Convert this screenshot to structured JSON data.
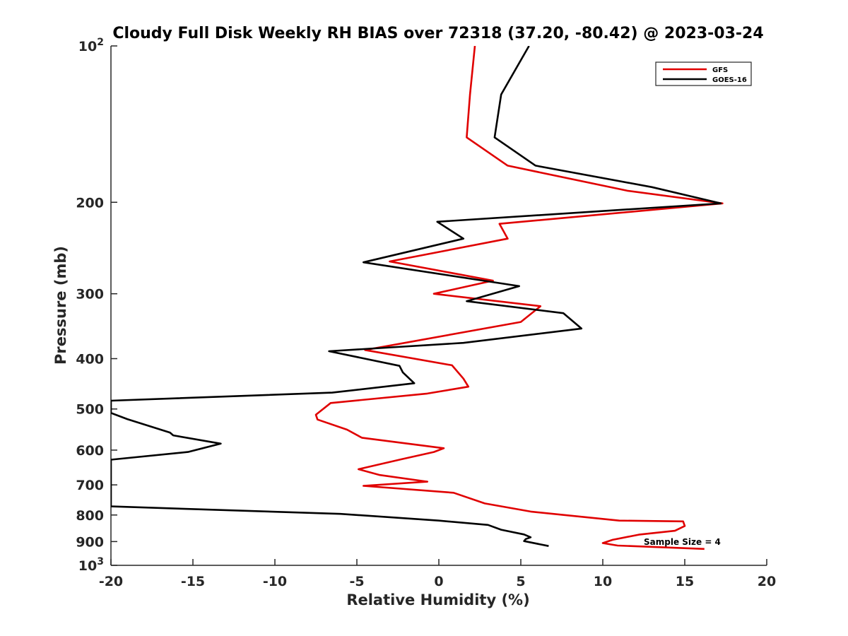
{
  "chart_data": {
    "type": "line",
    "title": "Cloudy Full Disk Weekly RH BIAS over 72318 (37.20, -80.42) @ 2023-03-24",
    "xlabel": "Relative Humidity (%)",
    "ylabel": "Pressure (mb)",
    "xlim": [
      -20,
      20
    ],
    "ylim": [
      100,
      1000
    ],
    "yscale": "log",
    "yreversed": true,
    "xticks": [
      -20,
      -15,
      -10,
      -5,
      0,
      5,
      10,
      15,
      20
    ],
    "xtick_labels": [
      "-20",
      "-15",
      "-10",
      "-5",
      "0",
      "5",
      "10",
      "15",
      "20"
    ],
    "yticks": [
      100,
      200,
      300,
      400,
      500,
      600,
      700,
      800,
      900,
      1000
    ],
    "ytick_labels": [
      {
        "base": "10",
        "exp": "2"
      },
      {
        "base": "200",
        "exp": ""
      },
      {
        "base": "300",
        "exp": ""
      },
      {
        "base": "400",
        "exp": ""
      },
      {
        "base": "500",
        "exp": ""
      },
      {
        "base": "600",
        "exp": ""
      },
      {
        "base": "700",
        "exp": ""
      },
      {
        "base": "800",
        "exp": ""
      },
      {
        "base": "900",
        "exp": ""
      },
      {
        "base": "10",
        "exp": "3"
      }
    ],
    "legend_position": "top-right",
    "annotation": "Sample Size = 4",
    "series": [
      {
        "name": "GFS",
        "color": "#e00000",
        "x": [
          2.2,
          1.9,
          1.7,
          4.2,
          11.5,
          17.3,
          3.7,
          4.2,
          -3.0,
          3.3,
          -0.3,
          6.2,
          5.0,
          -4.5,
          0.8,
          1.5,
          1.8,
          -0.7,
          -6.6,
          -7.5,
          -7.4,
          -5.6,
          -4.7,
          0.3,
          -0.3,
          -2.3,
          -4.9,
          -3.6,
          -0.7,
          -4.6,
          0.9,
          2.8,
          5.6,
          11.0,
          14.9,
          15.0,
          14.4,
          12.2,
          10.6,
          10.0,
          10.9,
          16.2
        ],
        "y": [
          100,
          124,
          150,
          170,
          190,
          201,
          220,
          235,
          260,
          283,
          300,
          317,
          340,
          385,
          412,
          437,
          453,
          467,
          487,
          513,
          524,
          548,
          568,
          595,
          605,
          625,
          653,
          670,
          690,
          703,
          725,
          760,
          788,
          820,
          823,
          840,
          858,
          873,
          893,
          906,
          916,
          930
        ]
      },
      {
        "name": "GOES-16",
        "color": "#000000",
        "x": [
          5.5,
          3.8,
          3.4,
          5.9,
          13.0,
          17.2,
          -0.1,
          1.5,
          -4.6,
          4.9,
          1.7,
          7.6,
          8.7,
          1.5,
          -6.7,
          -2.4,
          -2.2,
          -1.5,
          -6.5,
          -20.0,
          -20.0,
          -19.0,
          -16.4,
          -16.2,
          -13.3,
          -15.3,
          -20.0,
          -20.0,
          -6.0,
          0.0,
          3.0,
          3.8,
          5.2,
          5.6,
          5.3,
          5.2,
          6.7
        ],
        "y": [
          100,
          124,
          150,
          170,
          187,
          201,
          218,
          235,
          261,
          290,
          310,
          327,
          350,
          373,
          387,
          413,
          425,
          446,
          465,
          482,
          509,
          523,
          555,
          562,
          583,
          605,
          626,
          770,
          796,
          820,
          836,
          854,
          872,
          883,
          890,
          898,
          918
        ]
      }
    ]
  }
}
